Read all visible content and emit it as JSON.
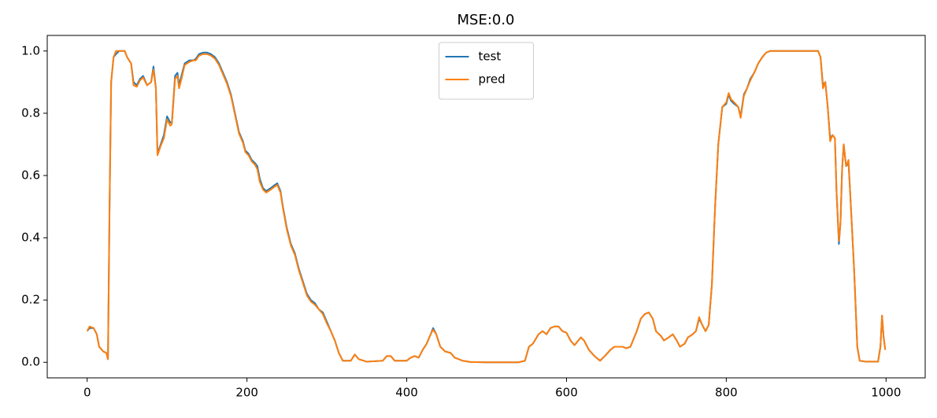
{
  "chart_data": {
    "type": "line",
    "title": "MSE:0.0",
    "x": [
      0,
      3,
      8,
      12,
      15,
      20,
      24,
      26,
      28,
      30,
      33,
      36,
      40,
      47,
      50,
      55,
      58,
      62,
      66,
      70,
      75,
      80,
      83,
      86,
      88,
      92,
      96,
      100,
      104,
      106,
      110,
      113,
      115,
      118,
      122,
      128,
      133,
      136,
      140,
      145,
      150,
      155,
      160,
      165,
      170,
      175,
      180,
      185,
      190,
      195,
      198,
      202,
      206,
      210,
      213,
      216,
      220,
      224,
      230,
      235,
      238,
      242,
      245,
      250,
      255,
      260,
      265,
      270,
      275,
      280,
      285,
      290,
      295,
      300,
      305,
      310,
      315,
      320,
      330,
      335,
      340,
      350,
      370,
      375,
      380,
      385,
      400,
      405,
      410,
      415,
      420,
      425,
      430,
      433,
      437,
      442,
      448,
      455,
      460,
      470,
      480,
      500,
      540,
      548,
      553,
      558,
      565,
      570,
      575,
      580,
      585,
      590,
      595,
      600,
      605,
      610,
      618,
      622,
      628,
      635,
      642,
      648,
      655,
      660,
      670,
      675,
      680,
      688,
      693,
      698,
      703,
      708,
      712,
      718,
      722,
      728,
      733,
      738,
      742,
      748,
      752,
      758,
      762,
      766,
      770,
      774,
      778,
      782,
      786,
      790,
      795,
      800,
      803,
      806,
      810,
      815,
      818,
      822,
      826,
      830,
      835,
      840,
      845,
      850,
      855,
      865,
      900,
      915,
      918,
      921,
      924,
      927,
      930,
      933,
      936,
      938,
      941,
      943,
      945,
      947,
      950,
      953,
      955,
      960,
      964,
      967,
      975,
      990,
      993,
      995,
      997,
      999
    ],
    "series": [
      {
        "name": "test",
        "color": "#1f77b4",
        "values": [
          0.1,
          0.11,
          0.11,
          0.09,
          0.05,
          0.035,
          0.03,
          0.01,
          0.5,
          0.9,
          0.98,
          0.99,
          1.0,
          1.0,
          0.98,
          0.96,
          0.9,
          0.89,
          0.91,
          0.92,
          0.89,
          0.9,
          0.95,
          0.88,
          0.67,
          0.7,
          0.73,
          0.79,
          0.77,
          0.77,
          0.92,
          0.93,
          0.89,
          0.92,
          0.96,
          0.97,
          0.97,
          0.975,
          0.99,
          0.995,
          0.995,
          0.99,
          0.98,
          0.96,
          0.93,
          0.9,
          0.86,
          0.8,
          0.74,
          0.71,
          0.68,
          0.67,
          0.65,
          0.64,
          0.63,
          0.59,
          0.56,
          0.55,
          0.56,
          0.57,
          0.575,
          0.55,
          0.5,
          0.43,
          0.38,
          0.35,
          0.3,
          0.26,
          0.22,
          0.2,
          0.19,
          0.17,
          0.16,
          0.13,
          0.1,
          0.07,
          0.03,
          0.005,
          0.005,
          0.025,
          0.01,
          0.002,
          0.005,
          0.02,
          0.02,
          0.005,
          0.005,
          0.015,
          0.02,
          0.015,
          0.04,
          0.06,
          0.09,
          0.11,
          0.09,
          0.05,
          0.035,
          0.03,
          0.015,
          0.005,
          0.001,
          0.0,
          0.0,
          0.005,
          0.05,
          0.06,
          0.09,
          0.1,
          0.09,
          0.11,
          0.115,
          0.115,
          0.1,
          0.095,
          0.07,
          0.055,
          0.08,
          0.07,
          0.04,
          0.02,
          0.005,
          0.02,
          0.04,
          0.05,
          0.05,
          0.045,
          0.05,
          0.1,
          0.14,
          0.155,
          0.16,
          0.14,
          0.1,
          0.085,
          0.07,
          0.08,
          0.09,
          0.07,
          0.05,
          0.06,
          0.08,
          0.09,
          0.1,
          0.14,
          0.12,
          0.1,
          0.12,
          0.25,
          0.5,
          0.7,
          0.82,
          0.83,
          0.86,
          0.84,
          0.83,
          0.82,
          0.79,
          0.86,
          0.88,
          0.91,
          0.93,
          0.96,
          0.98,
          0.995,
          1.0,
          1.0,
          1.0,
          1.0,
          0.98,
          0.89,
          0.9,
          0.82,
          0.72,
          0.73,
          0.72,
          0.55,
          0.38,
          0.45,
          0.62,
          0.7,
          0.63,
          0.64,
          0.55,
          0.3,
          0.05,
          0.005,
          0.002,
          0.002,
          0.05,
          0.15,
          0.08,
          0.04
        ]
      },
      {
        "name": "pred",
        "color": "#ff7f0e",
        "values": [
          0.1,
          0.115,
          0.11,
          0.09,
          0.05,
          0.035,
          0.03,
          0.01,
          0.5,
          0.9,
          0.98,
          1.0,
          1.0,
          1.0,
          0.98,
          0.96,
          0.89,
          0.885,
          0.905,
          0.915,
          0.89,
          0.9,
          0.94,
          0.88,
          0.665,
          0.695,
          0.72,
          0.78,
          0.76,
          0.765,
          0.91,
          0.92,
          0.88,
          0.91,
          0.955,
          0.965,
          0.97,
          0.97,
          0.985,
          0.99,
          0.99,
          0.985,
          0.975,
          0.955,
          0.925,
          0.895,
          0.855,
          0.795,
          0.735,
          0.705,
          0.675,
          0.665,
          0.645,
          0.635,
          0.62,
          0.58,
          0.555,
          0.545,
          0.555,
          0.565,
          0.57,
          0.545,
          0.495,
          0.425,
          0.375,
          0.345,
          0.295,
          0.255,
          0.215,
          0.195,
          0.185,
          0.17,
          0.155,
          0.125,
          0.1,
          0.07,
          0.03,
          0.005,
          0.005,
          0.025,
          0.01,
          0.002,
          0.005,
          0.02,
          0.02,
          0.005,
          0.005,
          0.015,
          0.02,
          0.015,
          0.04,
          0.06,
          0.09,
          0.105,
          0.09,
          0.05,
          0.035,
          0.03,
          0.015,
          0.005,
          0.001,
          0.0,
          0.0,
          0.005,
          0.05,
          0.06,
          0.09,
          0.1,
          0.09,
          0.11,
          0.115,
          0.115,
          0.1,
          0.095,
          0.07,
          0.055,
          0.08,
          0.07,
          0.04,
          0.02,
          0.005,
          0.02,
          0.04,
          0.05,
          0.05,
          0.045,
          0.05,
          0.1,
          0.14,
          0.155,
          0.16,
          0.14,
          0.1,
          0.085,
          0.07,
          0.08,
          0.09,
          0.07,
          0.05,
          0.06,
          0.08,
          0.09,
          0.1,
          0.145,
          0.12,
          0.1,
          0.12,
          0.25,
          0.5,
          0.7,
          0.82,
          0.835,
          0.865,
          0.845,
          0.835,
          0.82,
          0.785,
          0.855,
          0.88,
          0.905,
          0.93,
          0.96,
          0.98,
          0.995,
          1.0,
          1.0,
          1.0,
          1.0,
          0.98,
          0.88,
          0.9,
          0.82,
          0.71,
          0.73,
          0.72,
          0.55,
          0.39,
          0.45,
          0.62,
          0.7,
          0.63,
          0.65,
          0.55,
          0.3,
          0.05,
          0.005,
          0.002,
          0.002,
          0.05,
          0.15,
          0.08,
          0.04
        ]
      }
    ],
    "xlim": [
      -50,
      1049
    ],
    "ylim": [
      -0.05,
      1.05
    ],
    "xticks": [
      0,
      200,
      400,
      600,
      800,
      1000
    ],
    "yticks": [
      {
        "value": 0,
        "label": "0.0"
      },
      0.2,
      0.4,
      0.6,
      0.8,
      {
        "value": 1,
        "label": "1.0"
      }
    ],
    "legend": "upper center"
  }
}
